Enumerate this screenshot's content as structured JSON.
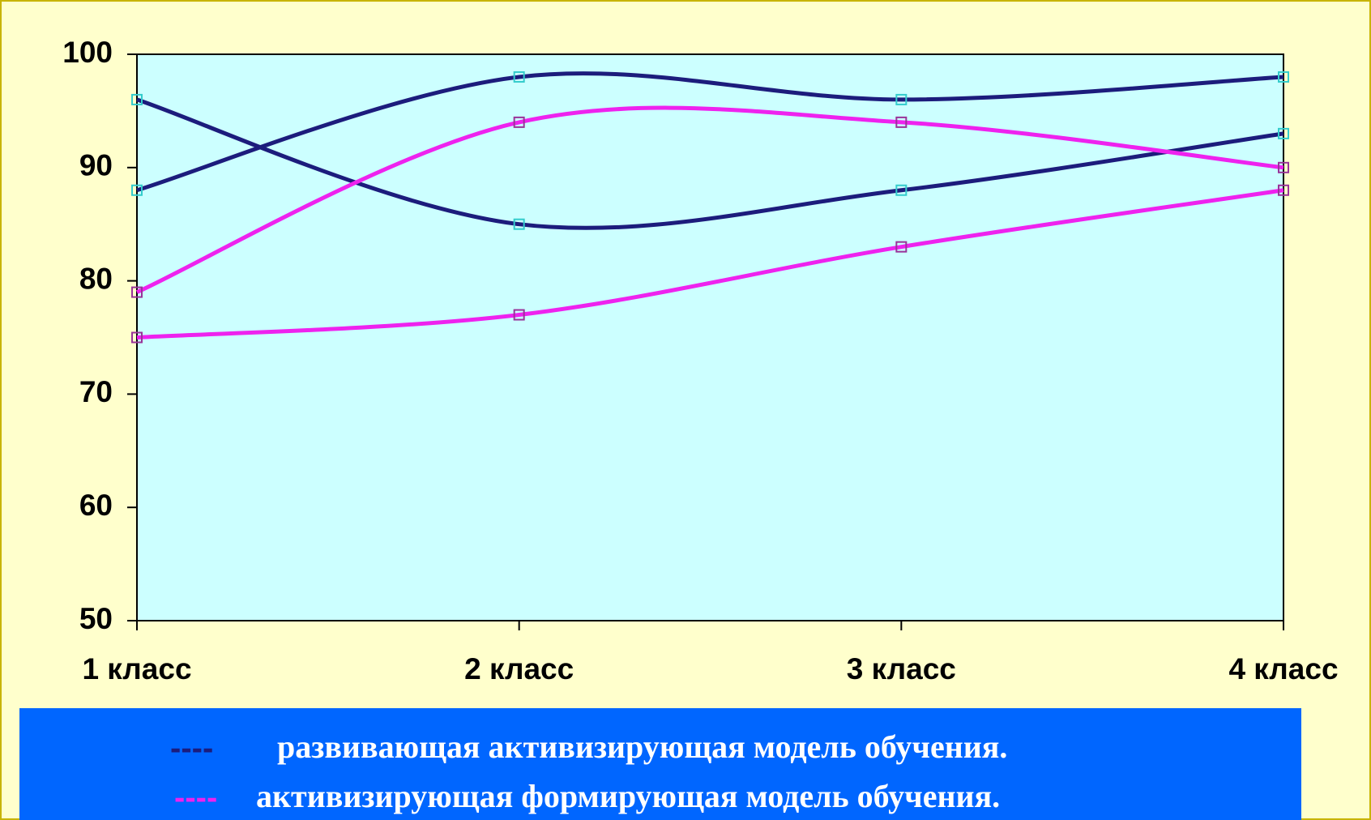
{
  "chart_data": {
    "type": "line",
    "categories": [
      "1 класс",
      "2 класс",
      "3 класс",
      "4 класс"
    ],
    "series": [
      {
        "color": "#1c1c7c",
        "marker_color": "#33cccc",
        "values": [
          96,
          85,
          88,
          93
        ]
      },
      {
        "color": "#1c1c7c",
        "marker_color": "#33cccc",
        "values": [
          88,
          98,
          96,
          98
        ]
      },
      {
        "color": "#ee22ee",
        "marker_color": "#993399",
        "values": [
          79,
          94,
          94,
          90
        ]
      },
      {
        "color": "#ee22ee",
        "marker_color": "#993399",
        "values": [
          75,
          77,
          83,
          88
        ]
      }
    ],
    "ylim": [
      50,
      100
    ],
    "yticks": [
      50,
      60,
      70,
      80,
      90,
      100
    ],
    "smooth": true,
    "legend": [
      {
        "marker": "----",
        "color": "#1c1c7c",
        "text": "развивающая активизирующая модель обучения."
      },
      {
        "marker": "----",
        "color": "#ee22ee",
        "text": "активизирующая формирующая модель обучения."
      }
    ]
  }
}
